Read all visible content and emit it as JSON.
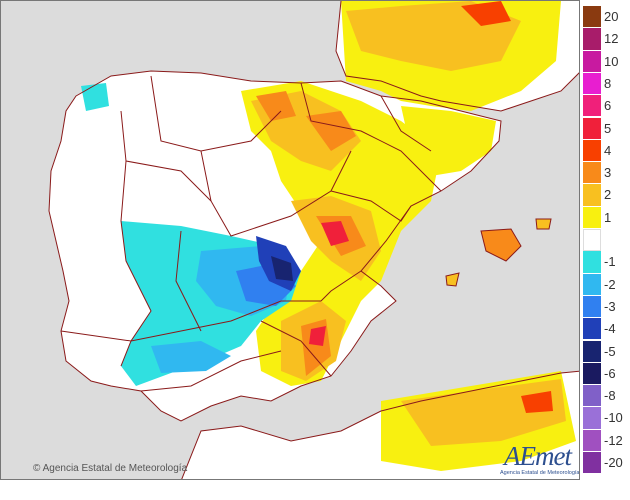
{
  "credit": {
    "text": "© Agencia Estatal de Meteorología"
  },
  "logo": {
    "main": "AEmet",
    "sub": "Agencia Estatal de Meteorología"
  },
  "legend": {
    "items": [
      {
        "label": "20",
        "color": "#8a3a10"
      },
      {
        "label": "12",
        "color": "#a81c6a"
      },
      {
        "label": "10",
        "color": "#c81aa0"
      },
      {
        "label": "8",
        "color": "#e81ed0"
      },
      {
        "label": "6",
        "color": "#f0207a"
      },
      {
        "label": "5",
        "color": "#f0203a"
      },
      {
        "label": "4",
        "color": "#f84000"
      },
      {
        "label": "3",
        "color": "#f88a1a"
      },
      {
        "label": "2",
        "color": "#f8c020"
      },
      {
        "label": "1",
        "color": "#f8f010"
      },
      {
        "label": "",
        "color": "#ffffff"
      },
      {
        "label": "-1",
        "color": "#30e0e0"
      },
      {
        "label": "-2",
        "color": "#30b8f0"
      },
      {
        "label": "-3",
        "color": "#3080f0"
      },
      {
        "label": "-4",
        "color": "#2040b8"
      },
      {
        "label": "-5",
        "color": "#182470"
      },
      {
        "label": "-6",
        "color": "#1a1a60"
      },
      {
        "label": "-8",
        "color": "#8060c8"
      },
      {
        "label": "-10",
        "color": "#9a70d8"
      },
      {
        "label": "-12",
        "color": "#a050c0"
      },
      {
        "label": "-20",
        "color": "#8030a0"
      }
    ]
  },
  "colors": {
    "sea": "#dcdcdc",
    "land": "#ffffff",
    "border": "#8a1a1a"
  }
}
